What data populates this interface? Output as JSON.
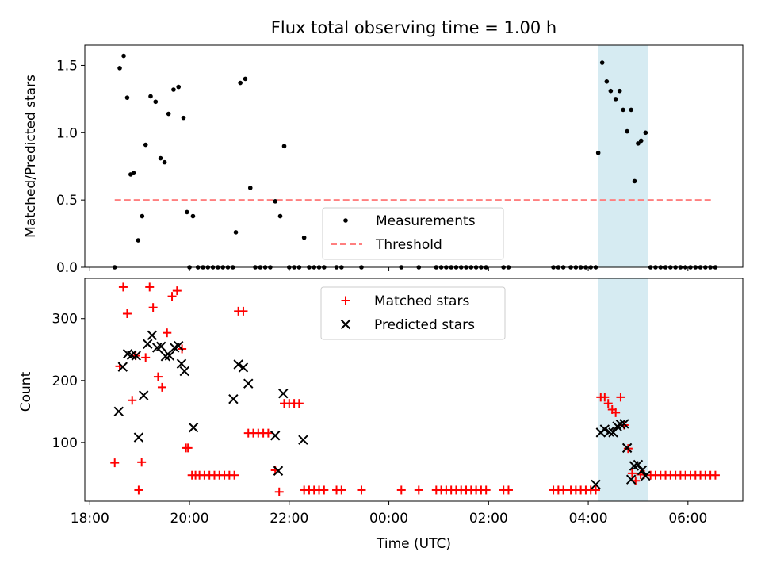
{
  "chart_data": [
    {
      "type": "scatter",
      "title": "Flux total observing time = 1.00 h",
      "ylabel": "Matched/Predicted stars",
      "xlabel": "",
      "x_unit": "hours since 18:00 UTC",
      "xlim": [
        -0.1,
        13.1
      ],
      "ylim": [
        0,
        1.65
      ],
      "yticks": [
        0.0,
        0.5,
        1.0,
        1.5
      ],
      "ytick_labels": [
        "0.0",
        "0.5",
        "1.0",
        "1.5"
      ],
      "grid": false,
      "legend_position": "lower-center",
      "highlight_span": {
        "x0": 10.2,
        "x1": 11.2,
        "color": "#add8e6"
      },
      "threshold": {
        "name": "Threshold",
        "y": 0.5,
        "x0": 0.5,
        "x1": 12.5,
        "color": "#ff7f7f",
        "style": "dashed"
      },
      "series": [
        {
          "name": "Measurements",
          "marker": "dot",
          "color": "#000000",
          "points": [
            [
              0.5,
              0.0
            ],
            [
              0.6,
              1.48
            ],
            [
              0.68,
              1.57
            ],
            [
              0.75,
              1.26
            ],
            [
              0.82,
              0.69
            ],
            [
              0.88,
              0.7
            ],
            [
              0.97,
              0.2
            ],
            [
              1.05,
              0.38
            ],
            [
              1.12,
              0.91
            ],
            [
              1.22,
              1.27
            ],
            [
              1.32,
              1.23
            ],
            [
              1.42,
              0.81
            ],
            [
              1.5,
              0.78
            ],
            [
              1.58,
              1.14
            ],
            [
              1.68,
              1.32
            ],
            [
              1.78,
              1.34
            ],
            [
              1.88,
              1.11
            ],
            [
              1.95,
              0.41
            ],
            [
              2.0,
              0.0
            ],
            [
              2.07,
              0.38
            ],
            [
              2.17,
              0.0
            ],
            [
              2.27,
              0.0
            ],
            [
              2.37,
              0.0
            ],
            [
              2.47,
              0.0
            ],
            [
              2.57,
              0.0
            ],
            [
              2.67,
              0.0
            ],
            [
              2.77,
              0.0
            ],
            [
              2.87,
              0.0
            ],
            [
              2.93,
              0.26
            ],
            [
              3.02,
              1.37
            ],
            [
              3.12,
              1.4
            ],
            [
              3.22,
              0.59
            ],
            [
              3.32,
              0.0
            ],
            [
              3.42,
              0.0
            ],
            [
              3.52,
              0.0
            ],
            [
              3.62,
              0.0
            ],
            [
              3.72,
              0.49
            ],
            [
              3.82,
              0.38
            ],
            [
              3.9,
              0.9
            ],
            [
              4.0,
              0.0
            ],
            [
              4.1,
              0.0
            ],
            [
              4.2,
              0.0
            ],
            [
              4.3,
              0.22
            ],
            [
              4.4,
              0.0
            ],
            [
              4.5,
              0.0
            ],
            [
              4.6,
              0.0
            ],
            [
              4.7,
              0.0
            ],
            [
              4.95,
              0.0
            ],
            [
              5.05,
              0.0
            ],
            [
              5.45,
              0.0
            ],
            [
              6.25,
              0.0
            ],
            [
              6.6,
              0.0
            ],
            [
              6.95,
              0.0
            ],
            [
              7.05,
              0.0
            ],
            [
              7.15,
              0.0
            ],
            [
              7.25,
              0.0
            ],
            [
              7.35,
              0.0
            ],
            [
              7.45,
              0.0
            ],
            [
              7.55,
              0.0
            ],
            [
              7.65,
              0.0
            ],
            [
              7.75,
              0.0
            ],
            [
              7.85,
              0.0
            ],
            [
              7.95,
              0.0
            ],
            [
              8.3,
              0.0
            ],
            [
              8.4,
              0.0
            ],
            [
              9.3,
              0.0
            ],
            [
              9.4,
              0.0
            ],
            [
              9.5,
              0.0
            ],
            [
              9.65,
              0.0
            ],
            [
              9.75,
              0.0
            ],
            [
              9.85,
              0.0
            ],
            [
              9.95,
              0.0
            ],
            [
              10.05,
              0.0
            ],
            [
              10.15,
              0.0
            ],
            [
              10.2,
              0.85
            ],
            [
              10.28,
              1.52
            ],
            [
              10.37,
              1.38
            ],
            [
              10.45,
              1.31
            ],
            [
              10.55,
              1.25
            ],
            [
              10.63,
              1.31
            ],
            [
              10.7,
              1.17
            ],
            [
              10.78,
              1.01
            ],
            [
              10.86,
              1.17
            ],
            [
              10.93,
              0.64
            ],
            [
              11.0,
              0.92
            ],
            [
              11.06,
              0.94
            ],
            [
              11.15,
              1.0
            ],
            [
              11.25,
              0.0
            ],
            [
              11.35,
              0.0
            ],
            [
              11.45,
              0.0
            ],
            [
              11.55,
              0.0
            ],
            [
              11.65,
              0.0
            ],
            [
              11.75,
              0.0
            ],
            [
              11.85,
              0.0
            ],
            [
              11.95,
              0.0
            ],
            [
              12.05,
              0.0
            ],
            [
              12.15,
              0.0
            ],
            [
              12.25,
              0.0
            ],
            [
              12.35,
              0.0
            ],
            [
              12.45,
              0.0
            ],
            [
              12.55,
              0.0
            ]
          ]
        }
      ]
    },
    {
      "type": "scatter",
      "title": "",
      "ylabel": "Count",
      "xlabel": "Time (UTC)",
      "x_unit": "hours since 18:00 UTC",
      "xlim": [
        -0.1,
        13.1
      ],
      "ylim": [
        5,
        365
      ],
      "yticks": [
        100,
        200,
        300
      ],
      "ytick_labels": [
        "100",
        "200",
        "300"
      ],
      "xticks": [
        0,
        2,
        4,
        6,
        8,
        10,
        12
      ],
      "xtick_labels": [
        "18:00",
        "20:00",
        "22:00",
        "00:00",
        "02:00",
        "04:00",
        "06:00"
      ],
      "grid": false,
      "legend_position": "top-center",
      "highlight_span": {
        "x0": 10.2,
        "x1": 11.2,
        "color": "#add8e6"
      },
      "series": [
        {
          "name": "Matched stars",
          "marker": "plus",
          "color": "#ff0000",
          "points": [
            [
              0.5,
              67
            ],
            [
              0.6,
              223
            ],
            [
              0.67,
              351
            ],
            [
              0.75,
              308
            ],
            [
              0.85,
              168
            ],
            [
              0.92,
              240
            ],
            [
              0.98,
              23
            ],
            [
              1.04,
              68
            ],
            [
              1.12,
              237
            ],
            [
              1.2,
              351
            ],
            [
              1.27,
              318
            ],
            [
              1.37,
              206
            ],
            [
              1.45,
              189
            ],
            [
              1.55,
              277
            ],
            [
              1.65,
              336
            ],
            [
              1.75,
              345
            ],
            [
              1.85,
              251
            ],
            [
              1.93,
              91
            ],
            [
              1.97,
              91
            ],
            [
              2.05,
              47
            ],
            [
              2.12,
              47
            ],
            [
              2.2,
              47
            ],
            [
              2.3,
              47
            ],
            [
              2.4,
              47
            ],
            [
              2.5,
              47
            ],
            [
              2.6,
              47
            ],
            [
              2.7,
              47
            ],
            [
              2.8,
              47
            ],
            [
              2.9,
              47
            ],
            [
              2.98,
              312
            ],
            [
              3.08,
              312
            ],
            [
              3.18,
              115
            ],
            [
              3.28,
              115
            ],
            [
              3.38,
              115
            ],
            [
              3.48,
              115
            ],
            [
              3.58,
              115
            ],
            [
              3.72,
              55
            ],
            [
              3.8,
              20
            ],
            [
              3.9,
              163
            ],
            [
              4.0,
              163
            ],
            [
              4.1,
              163
            ],
            [
              4.2,
              163
            ],
            [
              4.3,
              23
            ],
            [
              4.4,
              23
            ],
            [
              4.5,
              23
            ],
            [
              4.6,
              23
            ],
            [
              4.7,
              23
            ],
            [
              4.95,
              23
            ],
            [
              5.05,
              23
            ],
            [
              5.45,
              23
            ],
            [
              6.25,
              23
            ],
            [
              6.6,
              23
            ],
            [
              6.95,
              23
            ],
            [
              7.05,
              23
            ],
            [
              7.15,
              23
            ],
            [
              7.25,
              23
            ],
            [
              7.35,
              23
            ],
            [
              7.45,
              23
            ],
            [
              7.55,
              23
            ],
            [
              7.65,
              23
            ],
            [
              7.75,
              23
            ],
            [
              7.85,
              23
            ],
            [
              7.95,
              23
            ],
            [
              8.3,
              23
            ],
            [
              8.4,
              23
            ],
            [
              9.3,
              23
            ],
            [
              9.4,
              23
            ],
            [
              9.5,
              23
            ],
            [
              9.65,
              23
            ],
            [
              9.75,
              23
            ],
            [
              9.85,
              23
            ],
            [
              9.95,
              23
            ],
            [
              10.05,
              23
            ],
            [
              10.15,
              23
            ],
            [
              10.25,
              173
            ],
            [
              10.33,
              173
            ],
            [
              10.4,
              163
            ],
            [
              10.48,
              153
            ],
            [
              10.55,
              148
            ],
            [
              10.65,
              173
            ],
            [
              10.72,
              128
            ],
            [
              10.8,
              90
            ],
            [
              10.88,
              50
            ],
            [
              10.95,
              38
            ],
            [
              11.05,
              48
            ],
            [
              11.12,
              48
            ],
            [
              11.25,
              47
            ],
            [
              11.35,
              47
            ],
            [
              11.45,
              47
            ],
            [
              11.55,
              47
            ],
            [
              11.65,
              47
            ],
            [
              11.75,
              47
            ],
            [
              11.85,
              47
            ],
            [
              11.95,
              47
            ],
            [
              12.05,
              47
            ],
            [
              12.15,
              47
            ],
            [
              12.25,
              47
            ],
            [
              12.35,
              47
            ],
            [
              12.45,
              47
            ],
            [
              12.55,
              47
            ]
          ]
        },
        {
          "name": "Predicted stars",
          "marker": "x",
          "color": "#000000",
          "points": [
            [
              0.58,
              150
            ],
            [
              0.66,
              222
            ],
            [
              0.76,
              243
            ],
            [
              0.84,
              241
            ],
            [
              0.93,
              240
            ],
            [
              0.98,
              108
            ],
            [
              1.08,
              176
            ],
            [
              1.16,
              259
            ],
            [
              1.25,
              273
            ],
            [
              1.35,
              253
            ],
            [
              1.43,
              255
            ],
            [
              1.52,
              239
            ],
            [
              1.6,
              240
            ],
            [
              1.7,
              253
            ],
            [
              1.78,
              256
            ],
            [
              1.84,
              227
            ],
            [
              1.9,
              215
            ],
            [
              2.08,
              124
            ],
            [
              2.88,
              170
            ],
            [
              2.98,
              226
            ],
            [
              3.08,
              221
            ],
            [
              3.18,
              195
            ],
            [
              3.72,
              111
            ],
            [
              3.78,
              54
            ],
            [
              3.88,
              179
            ],
            [
              4.28,
              104
            ],
            [
              10.15,
              32
            ],
            [
              10.25,
              116
            ],
            [
              10.33,
              121
            ],
            [
              10.42,
              117
            ],
            [
              10.5,
              116
            ],
            [
              10.58,
              126
            ],
            [
              10.65,
              129
            ],
            [
              10.72,
              130
            ],
            [
              10.78,
              91
            ],
            [
              10.86,
              40
            ],
            [
              10.92,
              62
            ],
            [
              11.0,
              64
            ],
            [
              11.08,
              55
            ],
            [
              11.15,
              46
            ]
          ]
        }
      ]
    }
  ]
}
